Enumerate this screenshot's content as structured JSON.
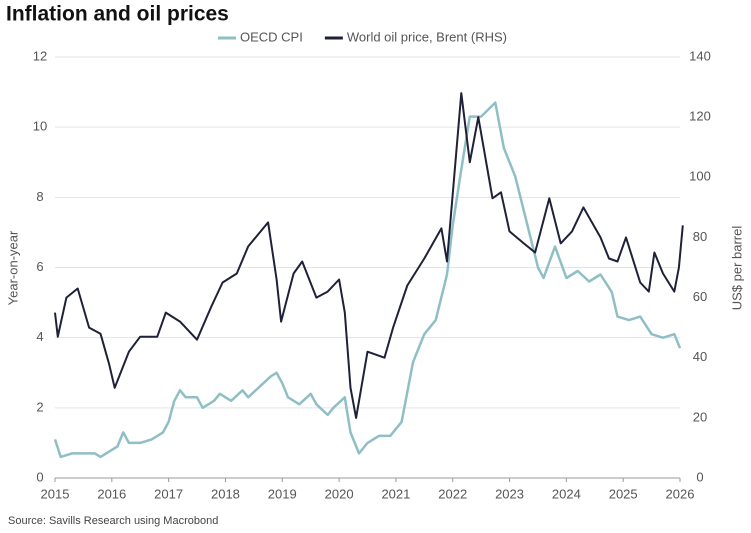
{
  "chart_data": {
    "type": "line",
    "title": "Inflation and oil prices",
    "ylabel": "Year-on-year",
    "y2label": "US$ per barrel",
    "source": "Source: Savills Research using Macrobond",
    "xlim": [
      2015,
      2026
    ],
    "xticks": [
      2015,
      2016,
      2017,
      2018,
      2019,
      2020,
      2021,
      2022,
      2023,
      2024,
      2025,
      2026
    ],
    "ylim": [
      0,
      12
    ],
    "yticks": [
      0,
      2,
      4,
      6,
      8,
      10,
      12
    ],
    "y2lim": [
      0,
      140
    ],
    "y2ticks": [
      0,
      20,
      40,
      60,
      80,
      100,
      120,
      140
    ],
    "grid": true,
    "legend": "top",
    "series": [
      {
        "name": "OECD CPI",
        "color": "#8fbfc5",
        "x": [
          2015.0,
          2015.1,
          2015.3,
          2015.5,
          2015.7,
          2015.8,
          2016.0,
          2016.1,
          2016.2,
          2016.3,
          2016.5,
          2016.7,
          2016.9,
          2017.0,
          2017.1,
          2017.2,
          2017.3,
          2017.5,
          2017.6,
          2017.8,
          2017.9,
          2018.1,
          2018.3,
          2018.4,
          2018.6,
          2018.8,
          2018.9,
          2019.0,
          2019.1,
          2019.3,
          2019.5,
          2019.6,
          2019.8,
          2019.9,
          2020.1,
          2020.2,
          2020.35,
          2020.5,
          2020.7,
          2020.9,
          2021.1,
          2021.3,
          2021.5,
          2021.7,
          2021.9,
          2022.0,
          2022.15,
          2022.3,
          2022.5,
          2022.75,
          2022.9,
          2023.1,
          2023.3,
          2023.5,
          2023.6,
          2023.8,
          2024.0,
          2024.2,
          2024.4,
          2024.6,
          2024.8,
          2024.9,
          2025.1,
          2025.3,
          2025.5,
          2025.7,
          2025.9,
          2026.0
        ],
        "values": [
          1.1,
          0.6,
          0.7,
          0.7,
          0.7,
          0.6,
          0.8,
          0.9,
          1.3,
          1.0,
          1.0,
          1.1,
          1.3,
          1.6,
          2.2,
          2.5,
          2.3,
          2.3,
          2.0,
          2.2,
          2.4,
          2.2,
          2.5,
          2.3,
          2.6,
          2.9,
          3.0,
          2.7,
          2.3,
          2.1,
          2.4,
          2.1,
          1.8,
          2.0,
          2.3,
          1.3,
          0.7,
          1.0,
          1.2,
          1.2,
          1.6,
          3.3,
          4.1,
          4.5,
          5.8,
          7.2,
          8.8,
          10.3,
          10.3,
          10.7,
          9.4,
          8.6,
          7.3,
          6.0,
          5.7,
          6.6,
          5.7,
          5.9,
          5.6,
          5.8,
          5.3,
          4.6,
          4.5,
          4.6,
          4.1,
          4.0,
          4.1,
          3.7
        ]
      },
      {
        "name": "World oil price, Brent (RHS)",
        "color": "#1e2139",
        "axis": "y2",
        "x": [
          2015.0,
          2015.05,
          2015.2,
          2015.4,
          2015.6,
          2015.8,
          2015.95,
          2016.05,
          2016.3,
          2016.5,
          2016.8,
          2016.95,
          2017.2,
          2017.5,
          2017.75,
          2017.95,
          2018.2,
          2018.4,
          2018.75,
          2018.9,
          2018.98,
          2019.2,
          2019.35,
          2019.6,
          2019.8,
          2020.0,
          2020.1,
          2020.2,
          2020.3,
          2020.5,
          2020.8,
          2020.95,
          2021.2,
          2021.5,
          2021.8,
          2021.9,
          2022.15,
          2022.3,
          2022.45,
          2022.7,
          2022.85,
          2023.0,
          2023.25,
          2023.45,
          2023.7,
          2023.9,
          2024.1,
          2024.3,
          2024.6,
          2024.75,
          2024.9,
          2025.05,
          2025.3,
          2025.45,
          2025.55,
          2025.7,
          2025.9,
          2025.98,
          2026.05
        ],
        "values": [
          55,
          47,
          60,
          63,
          50,
          48,
          38,
          30,
          42,
          47,
          47,
          55,
          52,
          46,
          57,
          65,
          68,
          77,
          85,
          66,
          52,
          68,
          72,
          60,
          62,
          66,
          55,
          30,
          20,
          42,
          40,
          50,
          64,
          73,
          83,
          72,
          128,
          105,
          120,
          93,
          95,
          82,
          78,
          75,
          93,
          78,
          82,
          90,
          80,
          73,
          72,
          80,
          65,
          62,
          75,
          68,
          62,
          70,
          84
        ]
      }
    ]
  }
}
